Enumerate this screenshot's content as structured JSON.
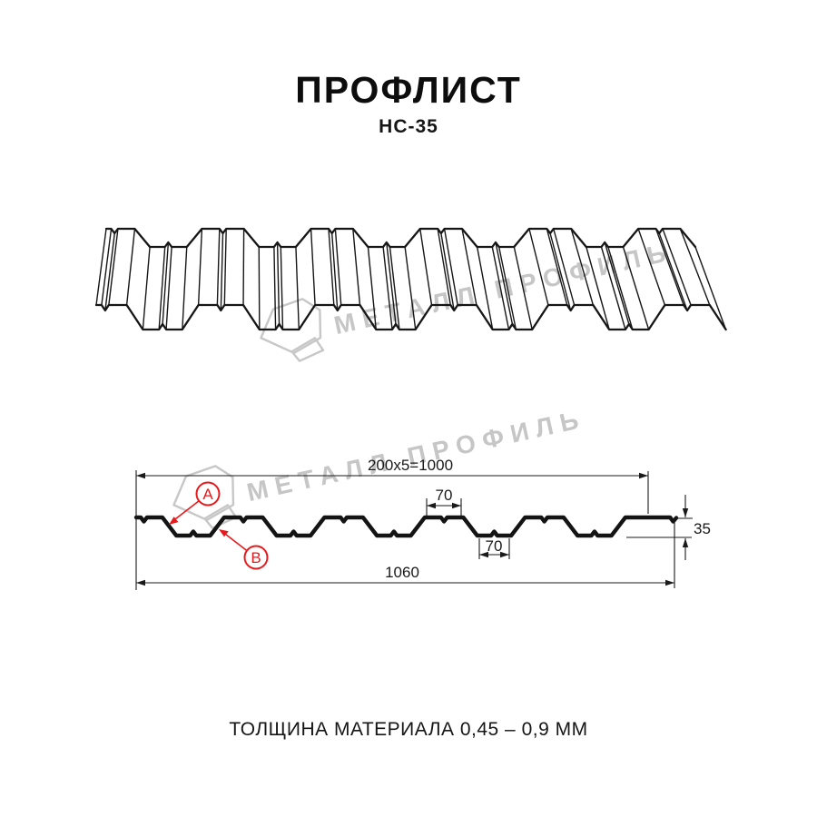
{
  "page": {
    "title": "ПРОФЛИСТ",
    "subtitle": "НС-35",
    "footer": "ТОЛЩИНА МАТЕРИАЛА 0,45 – 0,9 ММ"
  },
  "watermark": {
    "brand": "МЕТАЛЛ ПРОФИЛЬ"
  },
  "cross_section": {
    "dim_coverage": "200x5=1000",
    "dim_crest_width": "70",
    "dim_valley_width": "70",
    "dim_total_width": "1060",
    "dim_height": "35",
    "label_a": "A",
    "label_b": "B"
  },
  "colors": {
    "accent_red": "#e8191c",
    "line_black": "#161616",
    "watermark_gray": "#c6c6c6"
  }
}
